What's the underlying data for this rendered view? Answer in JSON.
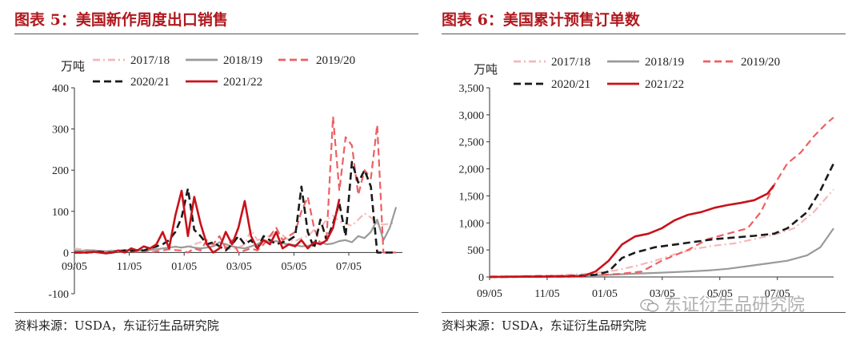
{
  "palette": {
    "s2017": "#f4b8b8",
    "s2018": "#9a9a9a",
    "s2019": "#ee5f63",
    "s2020": "#1a1a1a",
    "s2021": "#c8121a",
    "title": "#b0191e"
  },
  "left_panel": {
    "title": "图表 5：美国新作周度出口销售",
    "source": "资料来源：USDA，东证衍生品研究院"
  },
  "right_panel": {
    "title": "图表 6：美国累计预售订单数",
    "source": "资料来源：USDA，东证衍生品研究院"
  },
  "watermark": {
    "text": "东证衍生品研究院",
    "icon": "wechat-icon"
  },
  "chart_data": [
    {
      "id": "weekly",
      "type": "line",
      "unit_label": "万吨",
      "ylim": [
        -100,
        400
      ],
      "yticks": [
        -100,
        0,
        100,
        200,
        300,
        400
      ],
      "xlim": [
        0,
        52
      ],
      "x_tick_positions": [
        0,
        8.7,
        17.4,
        26.1,
        34.8,
        43.5
      ],
      "x_tick_labels": [
        "09/05",
        "11/05",
        "01/05",
        "03/05",
        "05/05",
        "07/05"
      ],
      "legend": [
        "2017/18",
        "2018/19",
        "2019/20",
        "2020/21",
        "2021/22"
      ],
      "series": [
        {
          "name": "2017/18",
          "style": "dashdot",
          "color_key": "s2017",
          "values": [
            10,
            8,
            5,
            6,
            4,
            3,
            5,
            4,
            3,
            6,
            5,
            7,
            8,
            10,
            9,
            12,
            15,
            12,
            14,
            20,
            25,
            22,
            18,
            12,
            10,
            8,
            12,
            20,
            55,
            30,
            35,
            40,
            45,
            42,
            30,
            28,
            35,
            40,
            55,
            60,
            80,
            90,
            75,
            70,
            65,
            80,
            95,
            85,
            70,
            68,
            70,
            72
          ]
        },
        {
          "name": "2018/19",
          "style": "solid",
          "color_key": "s2018",
          "values": [
            5,
            4,
            6,
            5,
            4,
            3,
            4,
            5,
            6,
            5,
            4,
            5,
            6,
            8,
            10,
            12,
            14,
            12,
            15,
            12,
            10,
            12,
            15,
            25,
            20,
            15,
            12,
            10,
            15,
            20,
            30,
            25,
            28,
            22,
            20,
            18,
            15,
            16,
            20,
            25,
            20,
            22,
            28,
            30,
            25,
            40,
            35,
            50,
            80,
            30,
            60,
            110
          ]
        },
        {
          "name": "2019/20",
          "style": "dashed",
          "color_key": "s2019",
          "values": [
            0,
            0,
            2,
            1,
            3,
            0,
            0,
            1,
            2,
            3,
            2,
            4,
            0,
            3,
            5,
            8,
            6,
            5,
            0,
            10,
            5,
            30,
            20,
            40,
            10,
            30,
            0,
            5,
            10,
            5,
            20,
            40,
            60,
            30,
            40,
            50,
            100,
            135,
            60,
            20,
            40,
            330,
            150,
            280,
            260,
            140,
            200,
            180,
            310,
            0,
            0,
            0
          ]
        },
        {
          "name": "2020/21",
          "style": "dashed",
          "color_key": "s2020",
          "values": [
            0,
            0,
            0,
            1,
            2,
            0,
            0,
            3,
            5,
            4,
            6,
            5,
            10,
            15,
            20,
            30,
            50,
            85,
            155,
            55,
            40,
            20,
            25,
            15,
            5,
            20,
            40,
            20,
            30,
            10,
            40,
            30,
            20,
            25,
            30,
            40,
            160,
            50,
            10,
            80,
            30,
            70,
            120,
            40,
            220,
            170,
            200,
            160,
            0,
            0,
            0,
            0
          ]
        },
        {
          "name": "2021/22",
          "style": "solid",
          "color_key": "s2021",
          "values": [
            0,
            0,
            0,
            2,
            0,
            -2,
            0,
            5,
            0,
            10,
            5,
            15,
            10,
            20,
            50,
            10,
            90,
            150,
            40,
            135,
            70,
            20,
            0,
            10,
            50,
            20,
            60,
            125,
            40,
            10,
            30,
            20,
            50,
            10,
            20,
            15,
            30,
            10,
            25,
            20,
            30,
            60,
            130,
            null,
            null,
            null,
            null,
            null,
            null,
            null,
            null,
            null
          ]
        }
      ]
    },
    {
      "id": "cumulative",
      "type": "line",
      "unit_label": "万吨",
      "ylim": [
        0,
        3500
      ],
      "yticks": [
        0,
        500,
        1000,
        1500,
        2000,
        2500,
        3000,
        3500
      ],
      "xlim": [
        0,
        52
      ],
      "x_tick_positions": [
        0,
        8.7,
        17.4,
        26.1,
        34.8,
        43.5
      ],
      "x_tick_labels": [
        "09/05",
        "11/05",
        "01/05",
        "03/05",
        "05/05",
        "07/05"
      ],
      "legend": [
        "2017/18",
        "2018/19",
        "2019/20",
        "2020/21",
        "2021/22"
      ],
      "series": [
        {
          "name": "2017/18",
          "style": "dashdot",
          "color_key": "s2017",
          "x": [
            0,
            10,
            15,
            19,
            22,
            25,
            28,
            31,
            34,
            37,
            40,
            43,
            46,
            49,
            52
          ],
          "values": [
            10,
            30,
            60,
            120,
            200,
            300,
            420,
            520,
            580,
            620,
            700,
            780,
            900,
            1200,
            1620
          ]
        },
        {
          "name": "2018/19",
          "style": "solid",
          "color_key": "s2018",
          "x": [
            0,
            10,
            17,
            22,
            26,
            30,
            33,
            36,
            39,
            42,
            45,
            48,
            50,
            52
          ],
          "values": [
            5,
            15,
            35,
            60,
            80,
            100,
            120,
            150,
            200,
            250,
            300,
            400,
            550,
            900
          ]
        },
        {
          "name": "2019/20",
          "style": "dashed",
          "color_key": "s2019",
          "x": [
            0,
            10,
            17,
            20,
            23,
            26,
            28,
            30,
            33,
            36,
            39,
            41,
            43,
            45,
            47,
            49,
            51,
            52
          ],
          "values": [
            5,
            20,
            40,
            60,
            100,
            300,
            400,
            500,
            700,
            800,
            900,
            1200,
            1700,
            2100,
            2300,
            2600,
            2850,
            2950
          ]
        },
        {
          "name": "2020/21",
          "style": "dashed",
          "color_key": "s2020",
          "x": [
            0,
            12,
            16,
            18,
            20,
            22,
            25,
            28,
            31,
            34,
            37,
            40,
            43,
            45,
            48,
            50,
            52
          ],
          "values": [
            0,
            10,
            40,
            100,
            350,
            450,
            550,
            600,
            650,
            700,
            730,
            760,
            800,
            900,
            1200,
            1600,
            2100
          ]
        },
        {
          "name": "2021/22",
          "style": "solid",
          "color_key": "s2021",
          "x": [
            0,
            14,
            16,
            18,
            20,
            22,
            24,
            26,
            28,
            30,
            32,
            34,
            36,
            38,
            40,
            42,
            43
          ],
          "values": [
            0,
            10,
            100,
            300,
            600,
            750,
            800,
            900,
            1050,
            1150,
            1200,
            1280,
            1330,
            1370,
            1420,
            1540,
            1700
          ]
        }
      ]
    }
  ]
}
